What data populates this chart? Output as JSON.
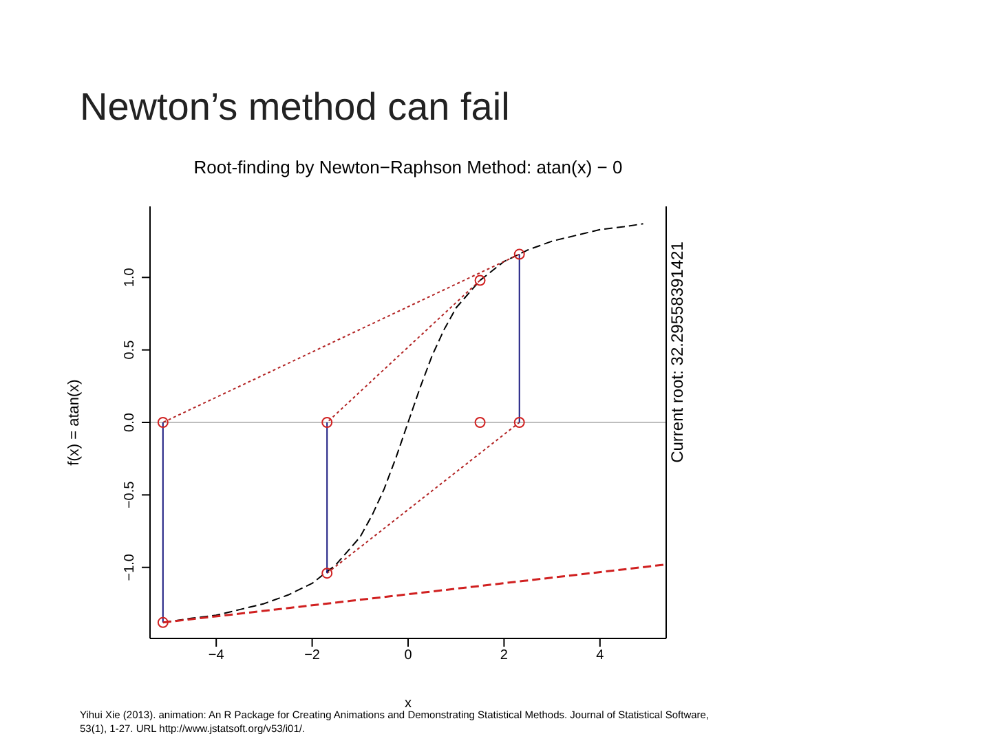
{
  "chart_data": {
    "type": "line",
    "title": "Newton’s method can fail",
    "subtitle": "Root-finding by Newton−Raphson Method: atan(x) − 0",
    "xlabel": "x",
    "ylabel": "f(x) = atan(x)",
    "xlim": [
      -5.38,
      5.38
    ],
    "ylim": [
      -1.49,
      1.49
    ],
    "xticks": [
      {
        "value": -4,
        "label": "−4"
      },
      {
        "value": -2,
        "label": "−2"
      },
      0,
      2,
      4
    ],
    "yticks": [
      {
        "value": -1,
        "label": "−1.0"
      },
      {
        "value": -0.5,
        "label": "−0.5"
      },
      {
        "value": 0,
        "label": "0.0"
      },
      {
        "value": 0.5,
        "label": "0.5"
      },
      {
        "value": 1,
        "label": "1.0"
      }
    ],
    "ref_lines": [
      {
        "axis": "y",
        "value": 0,
        "color": "#bebebe"
      }
    ],
    "annotations": [
      "Current root: 32.2955839142​1",
      "Yihui Xie (2013). animation: An R Package for Creating Animations and Demonstrating Statistical Methods. Journal of Statistical Software, 53(1), 1-27. URL http://www.jstatsoft.org/v53/i01/."
    ],
    "series": [
      {
        "color": "#000000",
        "line_style": "dashed",
        "marker": "none",
        "x": [
          -5.11,
          -4.5,
          -4,
          -3.5,
          -3,
          -2.5,
          -2,
          -1.5,
          -1,
          -0.75,
          -0.5,
          -0.25,
          0,
          0.25,
          0.5,
          0.75,
          1,
          1.5,
          2,
          2.5,
          3,
          3.5,
          4,
          4.5,
          4.9
        ],
        "values": [
          -1.38,
          -1.35,
          -1.33,
          -1.29,
          -1.25,
          -1.19,
          -1.11,
          -0.98,
          -0.79,
          -0.64,
          -0.46,
          -0.24,
          0,
          0.24,
          0.46,
          0.64,
          0.79,
          0.98,
          1.11,
          1.19,
          1.25,
          1.29,
          1.33,
          1.35,
          1.37
        ]
      },
      {
        "color": "#b22222",
        "line_style": "dotted",
        "marker": "none",
        "x": [
          1.5,
          -1.69
        ],
        "values": [
          0.98,
          0
        ]
      },
      {
        "color": "#b22222",
        "line_style": "dotted",
        "marker": "none",
        "x": [
          -1.69,
          2.32
        ],
        "values": [
          -1.04,
          0
        ]
      },
      {
        "color": "#b22222",
        "line_style": "dotted",
        "marker": "none",
        "x": [
          2.32,
          -5.11
        ],
        "values": [
          1.16,
          0
        ]
      },
      {
        "color": "#1a1a80",
        "line_style": "solid",
        "marker": "none",
        "x": [
          2.32,
          2.32
        ],
        "values": [
          0,
          1.16
        ]
      },
      {
        "color": "#1a1a80",
        "line_style": "solid",
        "marker": "none",
        "x": [
          -1.69,
          -1.69
        ],
        "values": [
          0,
          -1.04
        ]
      },
      {
        "color": "#1a1a80",
        "line_style": "solid",
        "marker": "none",
        "x": [
          -5.11,
          -5.11
        ],
        "values": [
          0,
          -1.38
        ]
      },
      {
        "color": "#d02020",
        "line_style": "dashed",
        "marker": "none",
        "x": [
          -5.11,
          5.38
        ],
        "values": [
          -1.38,
          -0.98
        ]
      },
      {
        "type": "scatter",
        "color": "#d02020",
        "marker": "circle",
        "x": [
          1.5,
          1.5,
          -1.69,
          -1.69,
          2.32,
          2.32,
          -5.11,
          -5.11
        ],
        "values": [
          0,
          0.98,
          0,
          -1.04,
          0,
          1.16,
          0,
          -1.38
        ]
      }
    ]
  }
}
